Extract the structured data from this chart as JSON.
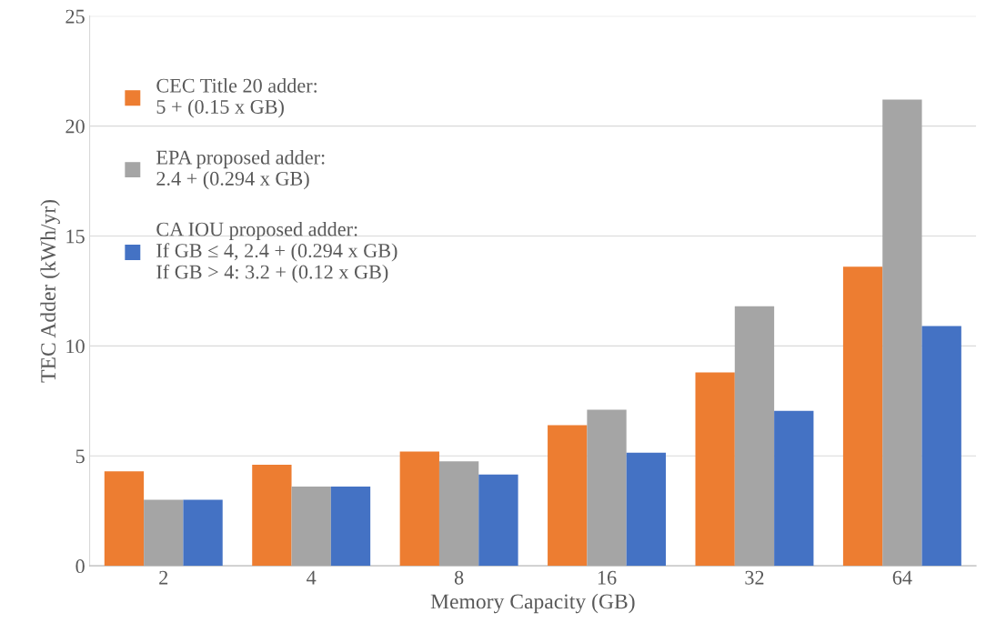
{
  "chart_data": {
    "type": "bar",
    "xlabel": "Memory Capacity (GB)",
    "ylabel": "TEC Adder (kWh/yr)",
    "categories": [
      "2",
      "4",
      "8",
      "16",
      "32",
      "64"
    ],
    "series": [
      {
        "name": "CEC Title 20 adder:\n5 + (0.15 x GB)",
        "color": "#ed7d31",
        "values": [
          4.3,
          4.6,
          5.2,
          6.4,
          8.8,
          13.6
        ]
      },
      {
        "name": "EPA proposed adder:\n2.4 + (0.294 x GB)",
        "color": "#a5a5a5",
        "values": [
          3.0,
          3.6,
          4.75,
          7.1,
          11.8,
          21.2
        ]
      },
      {
        "name": "CA IOU proposed adder:\nIf GB ≤ 4, 2.4 + (0.294 x GB)\nIf GB > 4: 3.2 + (0.12 x GB)",
        "color": "#4472c4",
        "values": [
          3.0,
          3.6,
          4.15,
          5.15,
          7.05,
          10.9
        ]
      }
    ],
    "ylim": [
      0,
      25
    ],
    "yticks": [
      0,
      5,
      10,
      15,
      20,
      25
    ],
    "grid": "y",
    "legend": "top left"
  }
}
